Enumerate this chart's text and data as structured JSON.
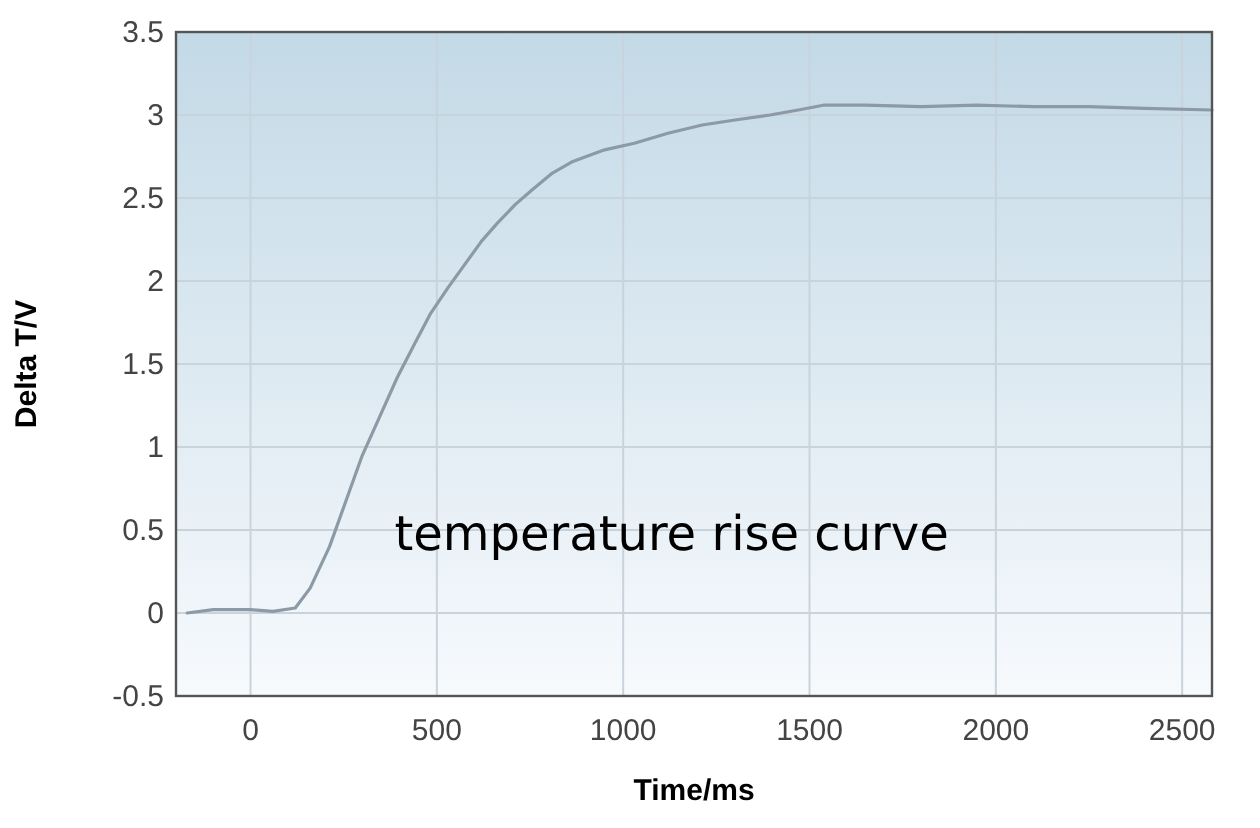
{
  "chart_data": {
    "type": "line",
    "xlabel": "Time/ms",
    "ylabel": "Delta T/V",
    "annotations": [
      "temperature rise curve"
    ],
    "xlim": [
      -200,
      2580
    ],
    "ylim": [
      -0.5,
      3.5
    ],
    "xticks": [
      0,
      500,
      1000,
      1500,
      2000,
      2500
    ],
    "yticks": [
      -0.5,
      0,
      0.5,
      1,
      1.5,
      2,
      2.5,
      3,
      3.5
    ],
    "grid": true,
    "series": [
      {
        "color": "#8c9aa6",
        "x": [
          -170,
          -100,
          0,
          60,
          120,
          160,
          212,
          260,
          300,
          350,
          394,
          440,
          482,
          530,
          575,
          620,
          663,
          710,
          756,
          810,
          865,
          950,
          1030,
          1120,
          1212,
          1300,
          1394,
          1470,
          1540,
          1650,
          1800,
          1950,
          2100,
          2250,
          2400,
          2580
        ],
        "values": [
          0.0,
          0.02,
          0.02,
          0.01,
          0.03,
          0.15,
          0.4,
          0.7,
          0.95,
          1.2,
          1.42,
          1.62,
          1.8,
          1.96,
          2.1,
          2.24,
          2.35,
          2.46,
          2.55,
          2.65,
          2.72,
          2.79,
          2.83,
          2.89,
          2.94,
          2.97,
          3.0,
          3.03,
          3.06,
          3.06,
          3.05,
          3.06,
          3.05,
          3.05,
          3.04,
          3.03
        ]
      }
    ]
  }
}
